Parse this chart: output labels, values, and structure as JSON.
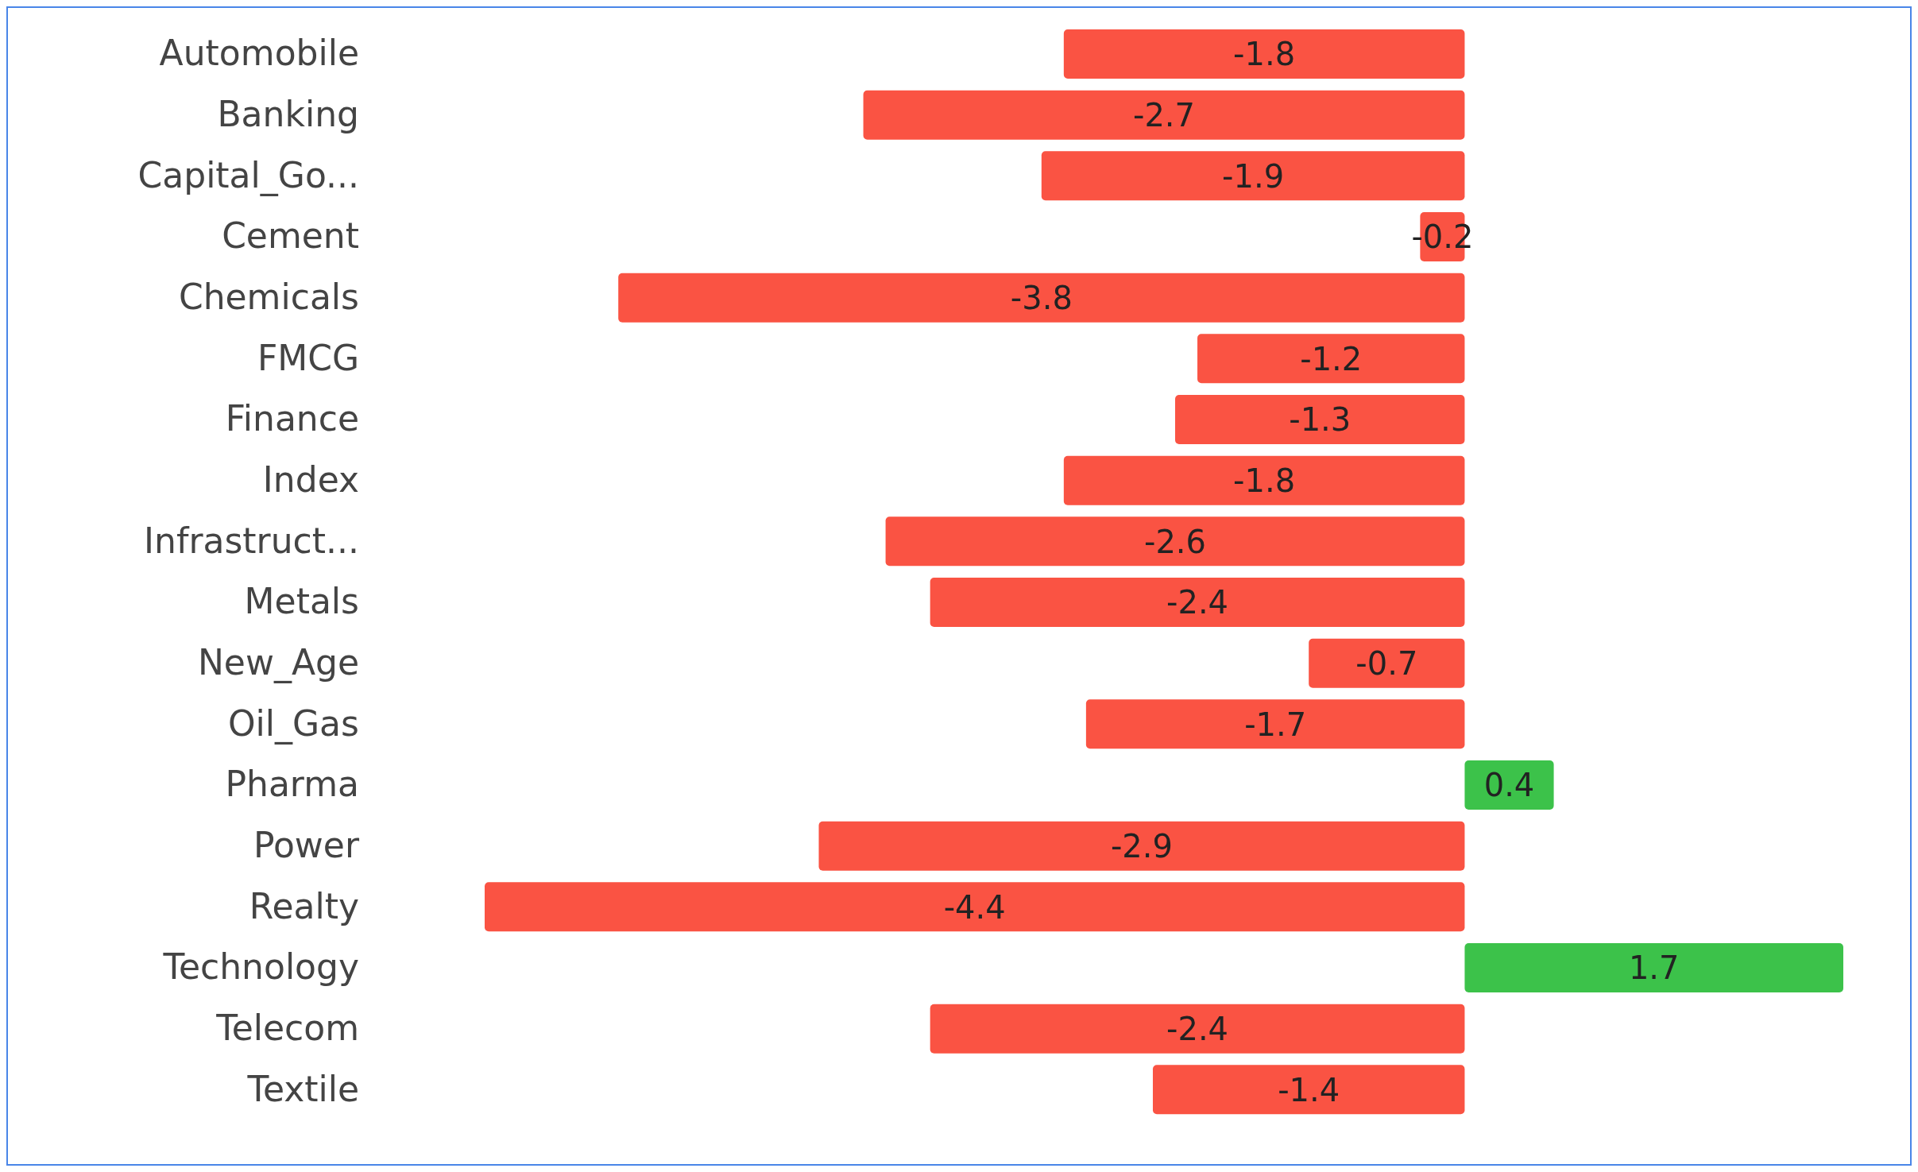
{
  "chart_data": {
    "type": "bar",
    "orientation": "horizontal",
    "categories": [
      "Automobile",
      "Banking",
      "Capital_Go...",
      "Cement",
      "Chemicals",
      "FMCG",
      "Finance",
      "Index",
      "Infrastruct...",
      "Metals",
      "New_Age",
      "Oil_Gas",
      "Pharma",
      "Power",
      "Realty",
      "Technology",
      "Telecom",
      "Textile"
    ],
    "values": [
      -1.8,
      -2.7,
      -1.9,
      -0.2,
      -3.8,
      -1.2,
      -1.3,
      -1.8,
      -2.6,
      -2.4,
      -0.7,
      -1.7,
      0.4,
      -2.9,
      -4.4,
      1.7,
      -2.4,
      -1.4
    ],
    "colors": [
      "#fa5343",
      "#fa5343",
      "#fa5343",
      "#fa5343",
      "#fa5343",
      "#fa5343",
      "#fa5343",
      "#fa5343",
      "#fa5343",
      "#fa5343",
      "#fa5343",
      "#fa5343",
      "#3cc24a",
      "#fa5343",
      "#fa5343",
      "#3cc24a",
      "#fa5343",
      "#fa5343"
    ],
    "data_labels": true,
    "grid": false,
    "legend": false
  }
}
